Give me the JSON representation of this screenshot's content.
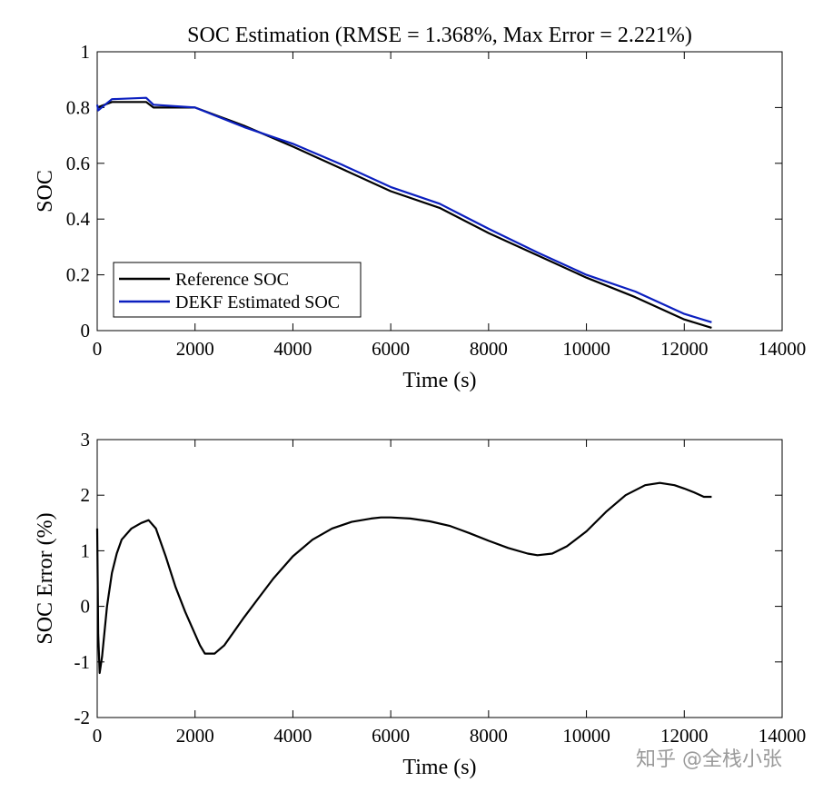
{
  "watermark": "知乎 @全栈小张",
  "chart_data": [
    {
      "type": "line",
      "title": "SOC Estimation (RMSE = 1.368%, Max Error = 2.221%)",
      "xlabel": "Time (s)",
      "ylabel": "SOC",
      "xlim": [
        0,
        14000
      ],
      "ylim": [
        0,
        1
      ],
      "xticks": [
        "0",
        "2000",
        "4000",
        "6000",
        "8000",
        "10000",
        "12000",
        "14000"
      ],
      "yticks": [
        "0",
        "0.2",
        "0.4",
        "0.6",
        "0.8",
        "1"
      ],
      "grid": false,
      "legend_position": "bottom-left",
      "series": [
        {
          "name": "Reference SOC",
          "color": "#000000",
          "x": [
            0,
            300,
            1000,
            1150,
            2000,
            3000,
            4000,
            5000,
            6000,
            7000,
            8000,
            9000,
            10000,
            11000,
            12000,
            12560
          ],
          "y": [
            0.8,
            0.82,
            0.82,
            0.8,
            0.8,
            0.735,
            0.66,
            0.58,
            0.5,
            0.44,
            0.35,
            0.27,
            0.19,
            0.12,
            0.04,
            0.01
          ]
        },
        {
          "name": "DEKF Estimated SOC",
          "color": "#0b1fbf",
          "x": [
            0,
            20,
            300,
            1000,
            1150,
            2000,
            3000,
            4000,
            5000,
            6000,
            7000,
            8000,
            9000,
            10000,
            11000,
            12000,
            12560
          ],
          "y": [
            0.81,
            0.79,
            0.83,
            0.835,
            0.81,
            0.8,
            0.73,
            0.67,
            0.595,
            0.515,
            0.455,
            0.365,
            0.28,
            0.2,
            0.14,
            0.06,
            0.03
          ]
        }
      ]
    },
    {
      "type": "line",
      "xlabel": "Time (s)",
      "ylabel": "SOC Error (%)",
      "xlim": [
        0,
        14000
      ],
      "ylim": [
        -2,
        3
      ],
      "xticks": [
        "0",
        "2000",
        "4000",
        "6000",
        "8000",
        "10000",
        "12000",
        "14000"
      ],
      "yticks": [
        "-2",
        "-1",
        "0",
        "1",
        "2",
        "3"
      ],
      "grid": false,
      "series": [
        {
          "color": "#000000",
          "x": [
            0,
            20,
            50,
            100,
            200,
            300,
            400,
            500,
            700,
            900,
            1050,
            1200,
            1400,
            1600,
            1800,
            2000,
            2100,
            2200,
            2400,
            2600,
            2800,
            3000,
            3300,
            3600,
            4000,
            4400,
            4800,
            5200,
            5600,
            5800,
            6000,
            6400,
            6800,
            7200,
            7600,
            8000,
            8400,
            8800,
            9000,
            9300,
            9600,
            10000,
            10400,
            10800,
            11200,
            11500,
            11800,
            12000,
            12200,
            12400,
            12560
          ],
          "y": [
            1.4,
            -0.5,
            -1.2,
            -0.9,
            0.0,
            0.6,
            0.95,
            1.2,
            1.4,
            1.5,
            1.55,
            1.4,
            0.9,
            0.35,
            -0.1,
            -0.5,
            -0.7,
            -0.85,
            -0.85,
            -0.7,
            -0.45,
            -0.2,
            0.15,
            0.5,
            0.9,
            1.2,
            1.4,
            1.52,
            1.58,
            1.6,
            1.6,
            1.58,
            1.53,
            1.45,
            1.32,
            1.18,
            1.05,
            0.95,
            0.92,
            0.95,
            1.08,
            1.35,
            1.7,
            2.0,
            2.18,
            2.22,
            2.18,
            2.12,
            2.05,
            1.97,
            1.97
          ]
        }
      ]
    }
  ]
}
